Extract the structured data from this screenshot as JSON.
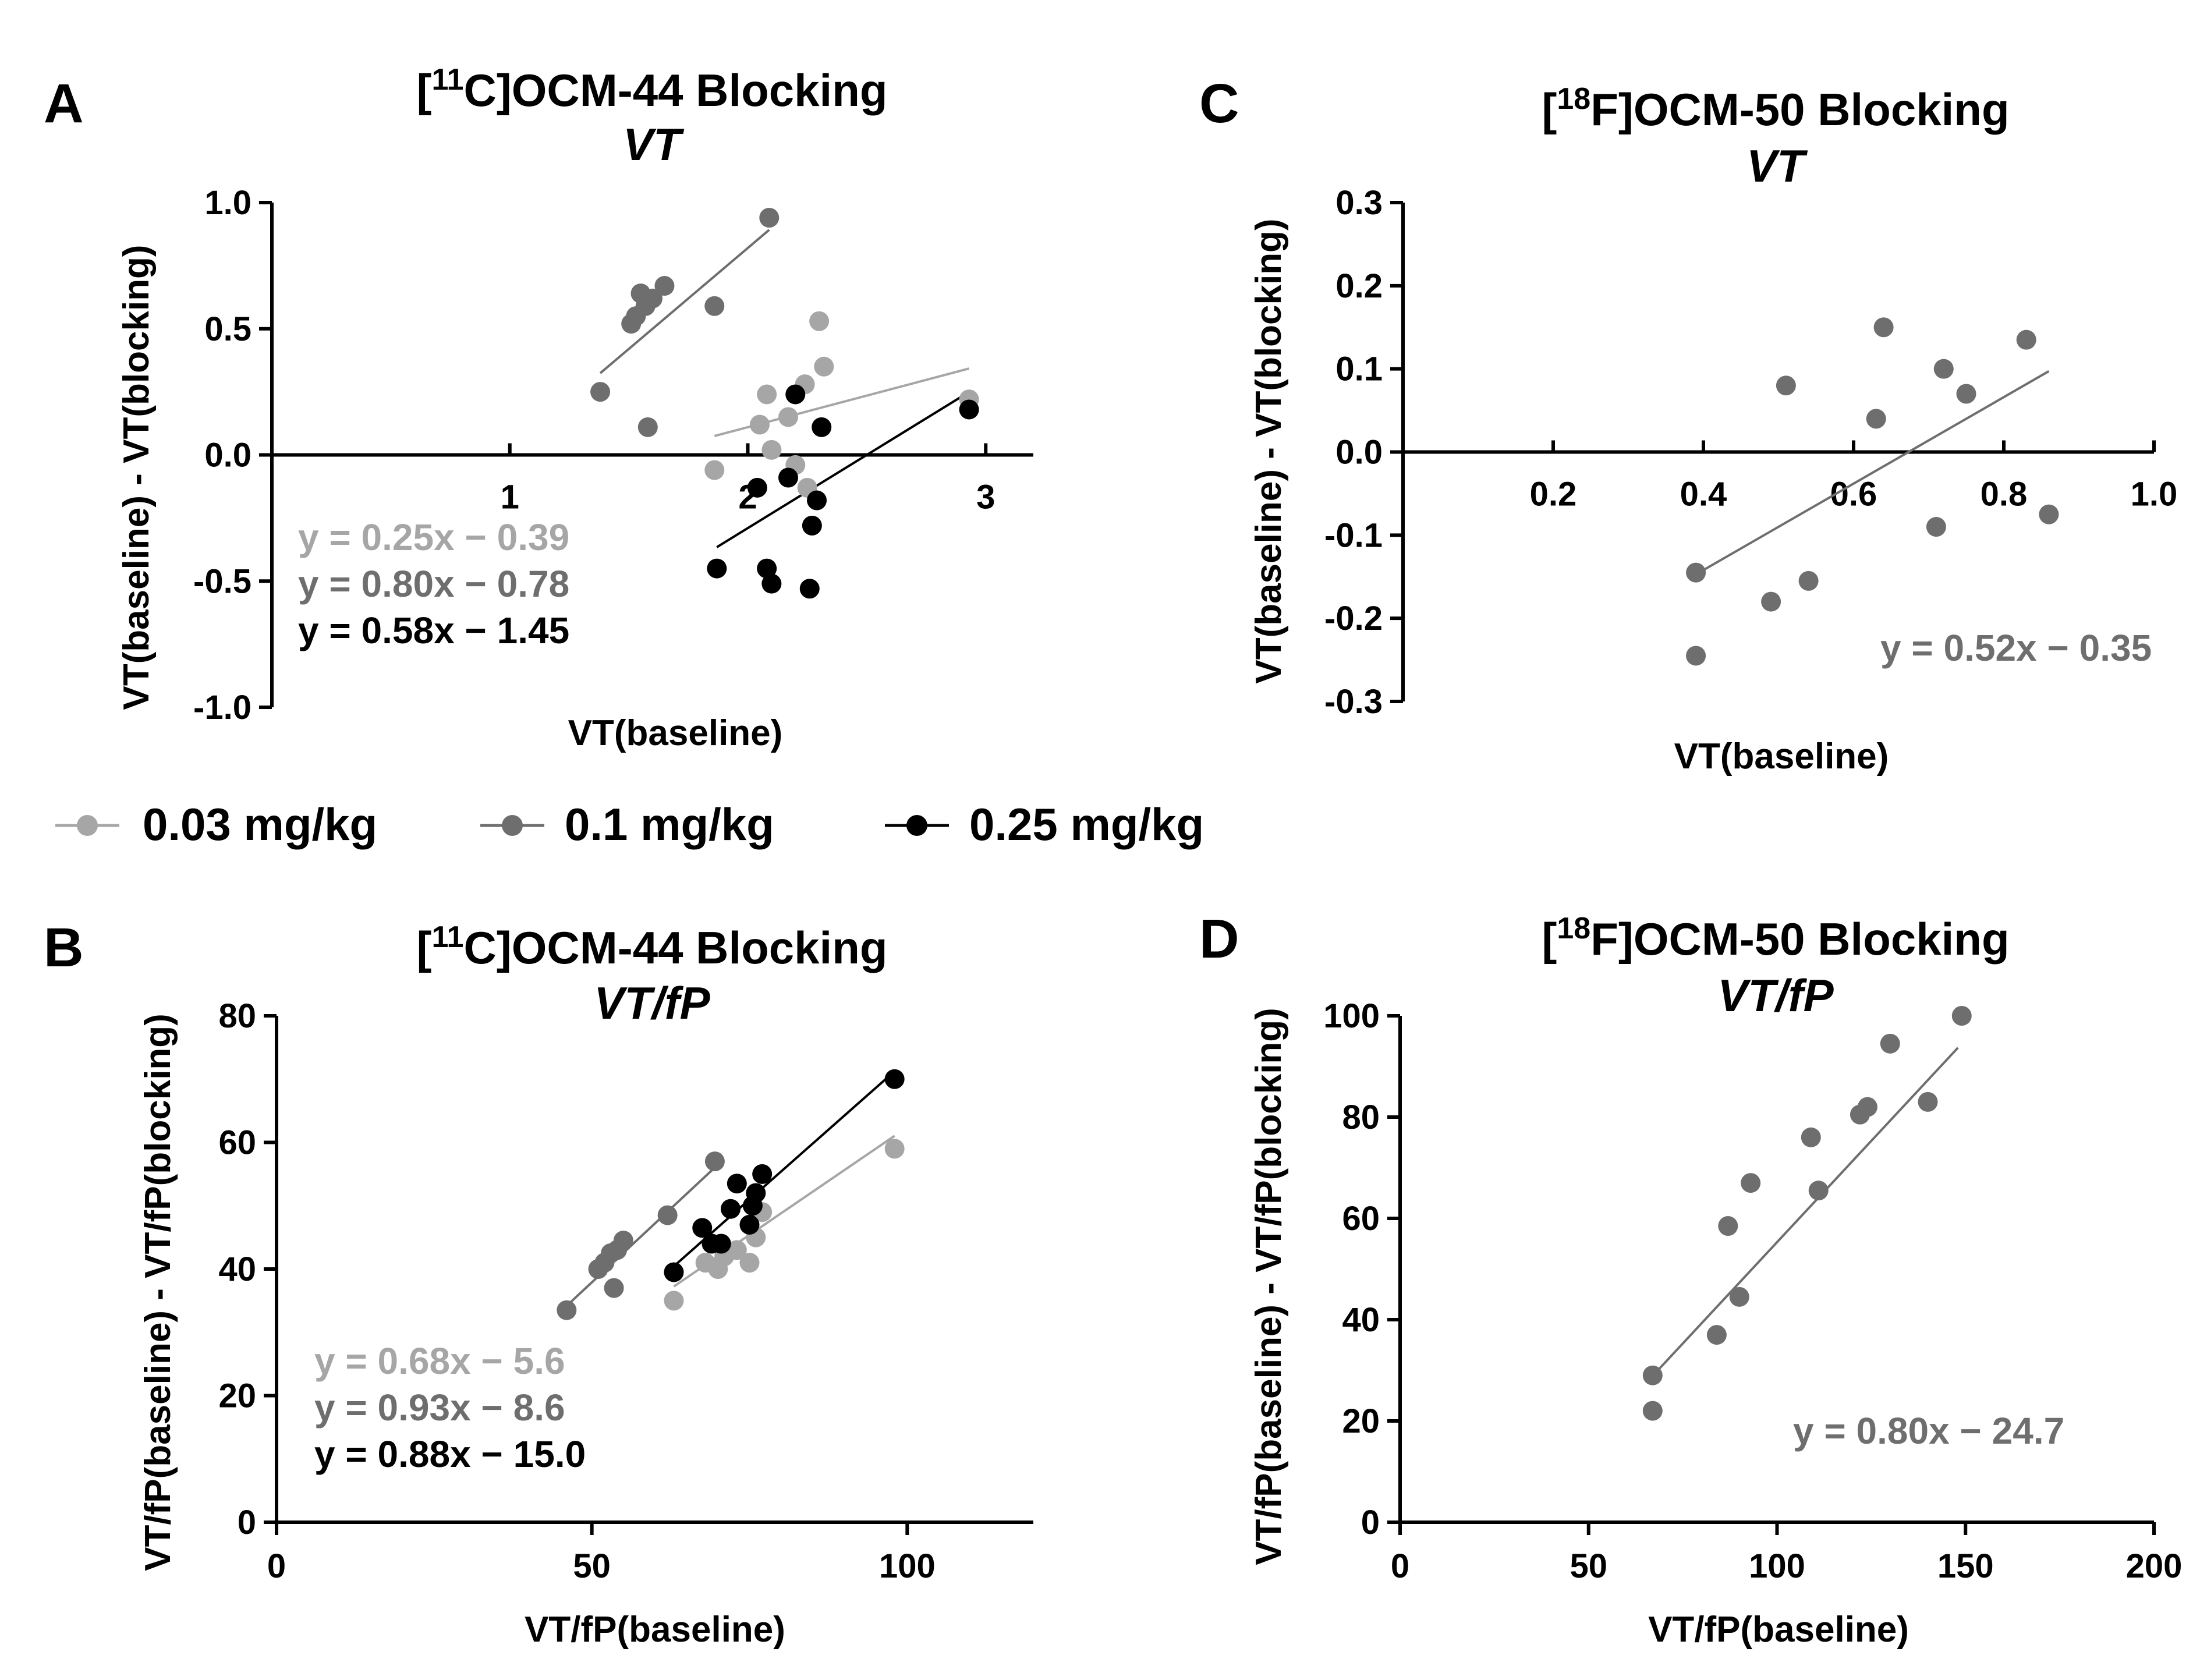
{
  "colors": {
    "light": "#a6a6a6",
    "mid": "#6e6e6e",
    "dark": "#000000"
  },
  "legend": [
    {
      "label": "0.03 mg/kg",
      "color": "#a6a6a6"
    },
    {
      "label": "0.1 mg/kg",
      "color": "#6e6e6e"
    },
    {
      "label": "0.25 mg/kg",
      "color": "#000000"
    }
  ],
  "panels": {
    "A": {
      "letter": "A",
      "title_prefix": "[",
      "title_sup": "11",
      "title_rest": "C]OCM-44 Blocking",
      "subtitle": "VT",
      "ylabel": "VT(baseline) - VT(blocking)",
      "xlabel": "VT(baseline)"
    },
    "B": {
      "letter": "B",
      "title_prefix": "[",
      "title_sup": "11",
      "title_rest": "C]OCM-44 Blocking",
      "subtitle": "VT/fP",
      "ylabel": "VT/fP(baseline) - VT/fP(blocking)",
      "xlabel": "VT/fP(baseline)"
    },
    "C": {
      "letter": "C",
      "title_prefix": "[",
      "title_sup": "18",
      "title_rest": "F]OCM-50 Blocking",
      "subtitle": "VT",
      "ylabel": "VT(baseline) - VT(blocking)",
      "xlabel": "VT(baseline)"
    },
    "D": {
      "letter": "D",
      "title_prefix": "[",
      "title_sup": "18",
      "title_rest": "F]OCM-50 Blocking",
      "subtitle": "VT/fP",
      "ylabel": "VT/fP(baseline) - VT/fP(blocking)",
      "xlabel": "VT/fP(baseline)"
    }
  },
  "chart_data": [
    {
      "id": "A",
      "type": "scatter",
      "title": "[11C]OCM-44 Blocking VT",
      "xlabel": "VT(baseline)",
      "ylabel": "VT(baseline) - VT(blocking)",
      "xlim": [
        0,
        3.2
      ],
      "ylim": [
        -1.0,
        1.0
      ],
      "xticks": [
        1,
        2,
        3
      ],
      "yticks": [
        -1.0,
        -0.5,
        0.0,
        0.5,
        1.0
      ],
      "x_axis_at_zero": true,
      "series": [
        {
          "name": "0.03 mg/kg",
          "color": "#a6a6a6",
          "x": [
            1.86,
            2.05,
            2.08,
            2.1,
            2.17,
            2.2,
            2.24,
            2.25,
            2.3,
            2.32,
            2.93
          ],
          "y": [
            -0.06,
            0.12,
            0.24,
            0.02,
            0.15,
            -0.04,
            0.28,
            -0.13,
            0.53,
            0.35,
            0.22
          ],
          "fit": {
            "label": "y = 0.25x − 0.39",
            "x_range": [
              1.86,
              2.93
            ]
          }
        },
        {
          "name": "0.1 mg/kg",
          "color": "#6e6e6e",
          "x": [
            1.38,
            1.51,
            1.53,
            1.55,
            1.57,
            1.58,
            1.6,
            1.65,
            1.86,
            2.09
          ],
          "y": [
            0.25,
            0.52,
            0.55,
            0.64,
            0.59,
            0.11,
            0.62,
            0.67,
            0.59,
            0.94
          ],
          "fit": {
            "label": "y = 0.80x − 0.78",
            "x_range": [
              1.38,
              2.09
            ]
          }
        },
        {
          "name": "0.25 mg/kg",
          "color": "#000000",
          "x": [
            1.87,
            2.04,
            2.08,
            2.1,
            2.17,
            2.2,
            2.26,
            2.27,
            2.29,
            2.31,
            2.93
          ],
          "y": [
            -0.45,
            -0.13,
            -0.45,
            -0.51,
            -0.09,
            0.24,
            -0.53,
            -0.28,
            -0.18,
            0.11,
            0.18
          ],
          "fit": {
            "label": "y = 0.58x − 1.45",
            "x_range": [
              1.87,
              2.93
            ]
          }
        }
      ]
    },
    {
      "id": "B",
      "type": "scatter",
      "title": "[11C]OCM-44 Blocking VT/fP",
      "xlabel": "VT/fP(baseline)",
      "ylabel": "VT/fP(baseline) - VT/fP(blocking)",
      "xlim": [
        0,
        120
      ],
      "ylim": [
        0,
        80
      ],
      "xticks": [
        0,
        50,
        100
      ],
      "yticks": [
        0,
        20,
        40,
        60,
        80
      ],
      "series": [
        {
          "name": "0.03 mg/kg",
          "color": "#a6a6a6",
          "x": [
            63,
            68,
            70,
            71,
            73,
            75,
            76,
            77,
            98
          ],
          "y": [
            35,
            41,
            40,
            42,
            43,
            41,
            45,
            49,
            59
          ],
          "fit": {
            "label": "y = 0.68x − 5.6",
            "x_range": [
              63,
              98
            ]
          }
        },
        {
          "name": "0.1 mg/kg",
          "color": "#6e6e6e",
          "x": [
            46,
            51,
            52,
            53,
            53.5,
            54,
            55,
            62,
            69.5
          ],
          "y": [
            33.5,
            40,
            41,
            42.5,
            37,
            43,
            44.5,
            48.5,
            57
          ],
          "fit": {
            "label": "y = 0.93x − 8.6",
            "x_range": [
              46,
              69.5
            ]
          }
        },
        {
          "name": "0.25 mg/kg",
          "color": "#000000",
          "x": [
            63,
            67.5,
            69,
            70.5,
            72,
            73,
            75,
            75.5,
            76,
            77,
            98
          ],
          "y": [
            39.5,
            46.5,
            44,
            44,
            49.5,
            53.5,
            47,
            50,
            52,
            55,
            70
          ],
          "fit": {
            "label": "y = 0.88x − 15.0",
            "x_range": [
              63,
              98
            ]
          }
        }
      ]
    },
    {
      "id": "C",
      "type": "scatter",
      "title": "[18F]OCM-50 Blocking VT",
      "xlabel": "VT(baseline)",
      "ylabel": "VT(baseline) - VT(blocking)",
      "xlim": [
        0,
        1.0
      ],
      "ylim": [
        -0.3,
        0.3
      ],
      "xticks": [
        0.2,
        0.4,
        0.6,
        0.8,
        1.0
      ],
      "yticks": [
        -0.3,
        -0.2,
        -0.1,
        0.0,
        0.1,
        0.2,
        0.3
      ],
      "x_axis_at_zero": true,
      "series": [
        {
          "name": "OCM-50",
          "color": "#6e6e6e",
          "x": [
            0.39,
            0.39,
            0.49,
            0.51,
            0.54,
            0.63,
            0.64,
            0.71,
            0.72,
            0.75,
            0.83,
            0.86
          ],
          "y": [
            -0.145,
            -0.245,
            -0.18,
            0.08,
            -0.155,
            0.04,
            0.15,
            -0.09,
            0.1,
            0.07,
            0.135,
            -0.075
          ],
          "fit": {
            "label": "y = 0.52x − 0.35",
            "x_range": [
              0.39,
              0.86
            ]
          }
        }
      ]
    },
    {
      "id": "D",
      "type": "scatter",
      "title": "[18F]OCM-50 Blocking VT/fP",
      "xlabel": "VT/fP(baseline)",
      "ylabel": "VT/fP(baseline) - VT/fP(blocking)",
      "xlim": [
        0,
        200
      ],
      "ylim": [
        0,
        100
      ],
      "xticks": [
        0,
        50,
        100,
        150,
        200
      ],
      "yticks": [
        0,
        20,
        40,
        60,
        80,
        100
      ],
      "series": [
        {
          "name": "OCM-50",
          "color": "#6e6e6e",
          "x": [
            67,
            67,
            84,
            87,
            90,
            93,
            109,
            111,
            122,
            124,
            130,
            140,
            149
          ],
          "y": [
            29,
            22,
            37,
            58.5,
            44.5,
            67,
            76,
            65.5,
            80.5,
            82,
            94.5,
            83,
            100
          ],
          "fit": {
            "label": "y = 0.80x − 24.7",
            "x_range": [
              67,
              148
            ]
          }
        }
      ]
    }
  ]
}
